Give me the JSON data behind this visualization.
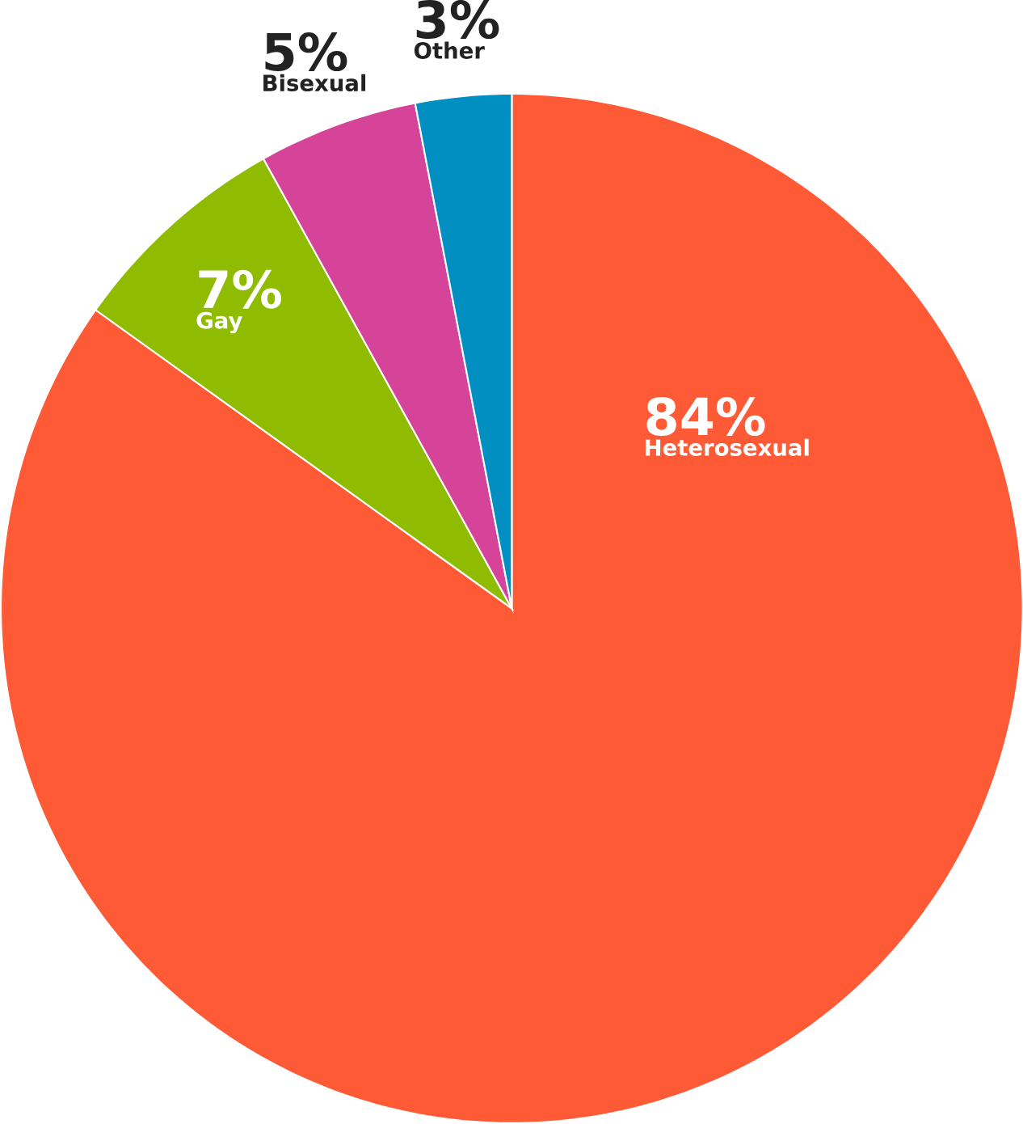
{
  "chart_data": {
    "type": "pie",
    "categories": [
      "Heterosexual",
      "Gay",
      "Bisexual",
      "Other"
    ],
    "values": [
      84,
      7,
      5,
      3
    ],
    "value_labels": [
      "84%",
      "7%",
      "5%",
      "3%"
    ],
    "colors": [
      "#ff5a36",
      "#8fbc00",
      "#d6449a",
      "#008fc0"
    ]
  }
}
